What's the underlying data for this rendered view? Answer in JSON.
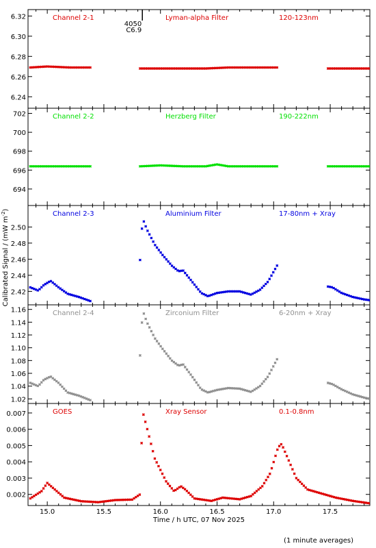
{
  "x_axis": {
    "label": "Time / h UTC, 07 Nov 2025",
    "range": [
      14.83,
      17.85
    ],
    "ticks": [
      "15.0",
      "15.5",
      "16.0",
      "16.5",
      "17.0",
      "17.5"
    ],
    "tick_values": [
      15.0,
      15.5,
      16.0,
      16.5,
      17.0,
      17.5
    ]
  },
  "y_axis_label": "Calibrated Signal / (mW m",
  "y_axis_label_exp": "-2",
  "y_axis_label_end": ")",
  "footnote": "(1 minute averages)",
  "flare_marker": {
    "time": 15.84,
    "line1": "4050",
    "line2": "C6.9"
  },
  "colors": {
    "red": "#dd0000",
    "green": "#00e000",
    "blue": "#0000e0",
    "gray": "#909090"
  },
  "panels": [
    {
      "id": "p1",
      "labels": [
        "Channel 2-1",
        "Lyman-alpha Filter",
        "120-123nm"
      ],
      "color": "#dd0000",
      "ylim": [
        6.23,
        6.325
      ],
      "ticks": [
        "6.24",
        "6.26",
        "6.28",
        "6.30",
        "6.32"
      ],
      "tick_values": [
        6.24,
        6.26,
        6.28,
        6.3,
        6.32
      ]
    },
    {
      "id": "p2",
      "labels": [
        "Channel 2-2",
        "Herzberg Filter",
        "190-222nm"
      ],
      "color": "#00e000",
      "ylim": [
        692.4,
        702.4
      ],
      "ticks": [
        "694",
        "696",
        "698",
        "700",
        "702"
      ],
      "tick_values": [
        694,
        696,
        698,
        700,
        702
      ]
    },
    {
      "id": "p3",
      "labels": [
        "Channel 2-3",
        "Aluminium Filter",
        "17-80nm + Xray"
      ],
      "color": "#0000e0",
      "ylim": [
        2.405,
        2.525
      ],
      "ticks": [
        "2.42",
        "2.44",
        "2.46",
        "2.48",
        "2.50"
      ],
      "tick_values": [
        2.42,
        2.44,
        2.46,
        2.48,
        2.5
      ]
    },
    {
      "id": "p4",
      "labels": [
        "Channel 2-4",
        "Zirconium Filter",
        "6-20nm + Xray"
      ],
      "color": "#909090",
      "ylim": [
        1.015,
        1.165
      ],
      "ticks": [
        "1.02",
        "1.04",
        "1.06",
        "1.08",
        "1.10",
        "1.12",
        "1.14",
        "1.16"
      ],
      "tick_values": [
        1.02,
        1.04,
        1.06,
        1.08,
        1.1,
        1.12,
        1.14,
        1.16
      ]
    },
    {
      "id": "p5",
      "labels": [
        "GOES",
        "Xray Sensor",
        "0.1-0.8nm"
      ],
      "color": "#dd0000",
      "ylim": [
        0.0014,
        0.0075
      ],
      "ticks": [
        "0.002",
        "0.003",
        "0.004",
        "0.005",
        "0.006",
        "0.007"
      ],
      "tick_values": [
        0.002,
        0.003,
        0.004,
        0.005,
        0.006,
        0.007
      ]
    }
  ],
  "chart_data": [
    {
      "type": "scatter",
      "series": [
        {
          "name": "Channel 2-1",
          "x": [
            14.85,
            15.0,
            15.2,
            15.38,
            15.82,
            16.0,
            16.2,
            16.4,
            16.6,
            16.8,
            17.03,
            17.48,
            17.6,
            17.85
          ],
          "y": [
            6.269,
            6.27,
            6.269,
            6.269,
            6.268,
            6.268,
            6.268,
            6.268,
            6.269,
            6.269,
            6.269,
            6.268,
            6.268,
            6.268
          ]
        }
      ]
    },
    {
      "type": "scatter",
      "series": [
        {
          "name": "Channel 2-2",
          "x": [
            14.85,
            15.0,
            15.2,
            15.38,
            15.82,
            16.0,
            16.2,
            16.4,
            16.5,
            16.6,
            16.8,
            17.03,
            17.48,
            17.6,
            17.85
          ],
          "y": [
            696.4,
            696.4,
            696.4,
            696.4,
            696.4,
            696.5,
            696.4,
            696.4,
            696.6,
            696.4,
            696.4,
            696.4,
            696.4,
            696.4,
            696.4
          ]
        }
      ]
    },
    {
      "type": "scatter",
      "series": [
        {
          "name": "Channel 2-3",
          "x": [
            14.85,
            14.92,
            14.97,
            15.03,
            15.1,
            15.18,
            15.28,
            15.38,
            15.82,
            15.84,
            15.85,
            15.88,
            15.95,
            16.02,
            16.1,
            16.16,
            16.2,
            16.28,
            16.36,
            16.42,
            16.5,
            16.6,
            16.7,
            16.8,
            16.88,
            16.95,
            17.03,
            17.48,
            17.52,
            17.6,
            17.7,
            17.8,
            17.85
          ],
          "y": [
            2.425,
            2.421,
            2.428,
            2.433,
            2.425,
            2.417,
            2.413,
            2.408,
            2.459,
            2.506,
            2.508,
            2.497,
            2.478,
            2.465,
            2.452,
            2.445,
            2.446,
            2.432,
            2.418,
            2.414,
            2.418,
            2.42,
            2.42,
            2.416,
            2.422,
            2.432,
            2.452,
            2.426,
            2.425,
            2.418,
            2.413,
            2.41,
            2.409
          ]
        }
      ]
    },
    {
      "type": "scatter",
      "series": [
        {
          "name": "Channel 2-4",
          "x": [
            14.85,
            14.92,
            14.97,
            15.03,
            15.1,
            15.18,
            15.28,
            15.38,
            15.82,
            15.84,
            15.85,
            15.88,
            15.95,
            16.02,
            16.1,
            16.16,
            16.2,
            16.28,
            16.36,
            16.42,
            16.5,
            16.6,
            16.7,
            16.8,
            16.88,
            16.95,
            17.03,
            17.48,
            17.52,
            17.6,
            17.7,
            17.8,
            17.85
          ],
          "y": [
            1.045,
            1.04,
            1.05,
            1.055,
            1.045,
            1.03,
            1.025,
            1.018,
            1.088,
            1.15,
            1.155,
            1.14,
            1.115,
            1.098,
            1.08,
            1.072,
            1.074,
            1.055,
            1.035,
            1.03,
            1.034,
            1.037,
            1.036,
            1.031,
            1.04,
            1.055,
            1.082,
            1.045,
            1.043,
            1.035,
            1.027,
            1.022,
            1.02
          ]
        }
      ]
    },
    {
      "type": "scatter",
      "series": [
        {
          "name": "GOES",
          "x": [
            14.85,
            14.95,
            15.0,
            15.05,
            15.15,
            15.3,
            15.45,
            15.6,
            15.75,
            15.82,
            15.83,
            15.85,
            15.88,
            15.95,
            16.05,
            16.12,
            16.18,
            16.22,
            16.3,
            16.45,
            16.55,
            16.7,
            16.8,
            16.9,
            16.97,
            17.04,
            17.07,
            17.12,
            17.2,
            17.3,
            17.4,
            17.55,
            17.7,
            17.85
          ],
          "y": [
            0.00175,
            0.0022,
            0.0027,
            0.0024,
            0.0018,
            0.00158,
            0.00152,
            0.00165,
            0.00168,
            0.002,
            0.0048,
            0.0069,
            0.0061,
            0.0042,
            0.0028,
            0.0022,
            0.0025,
            0.0023,
            0.00175,
            0.0016,
            0.0018,
            0.0017,
            0.0019,
            0.0025,
            0.0033,
            0.0049,
            0.0051,
            0.0043,
            0.003,
            0.0023,
            0.0021,
            0.0018,
            0.0016,
            0.00145
          ]
        }
      ]
    }
  ]
}
